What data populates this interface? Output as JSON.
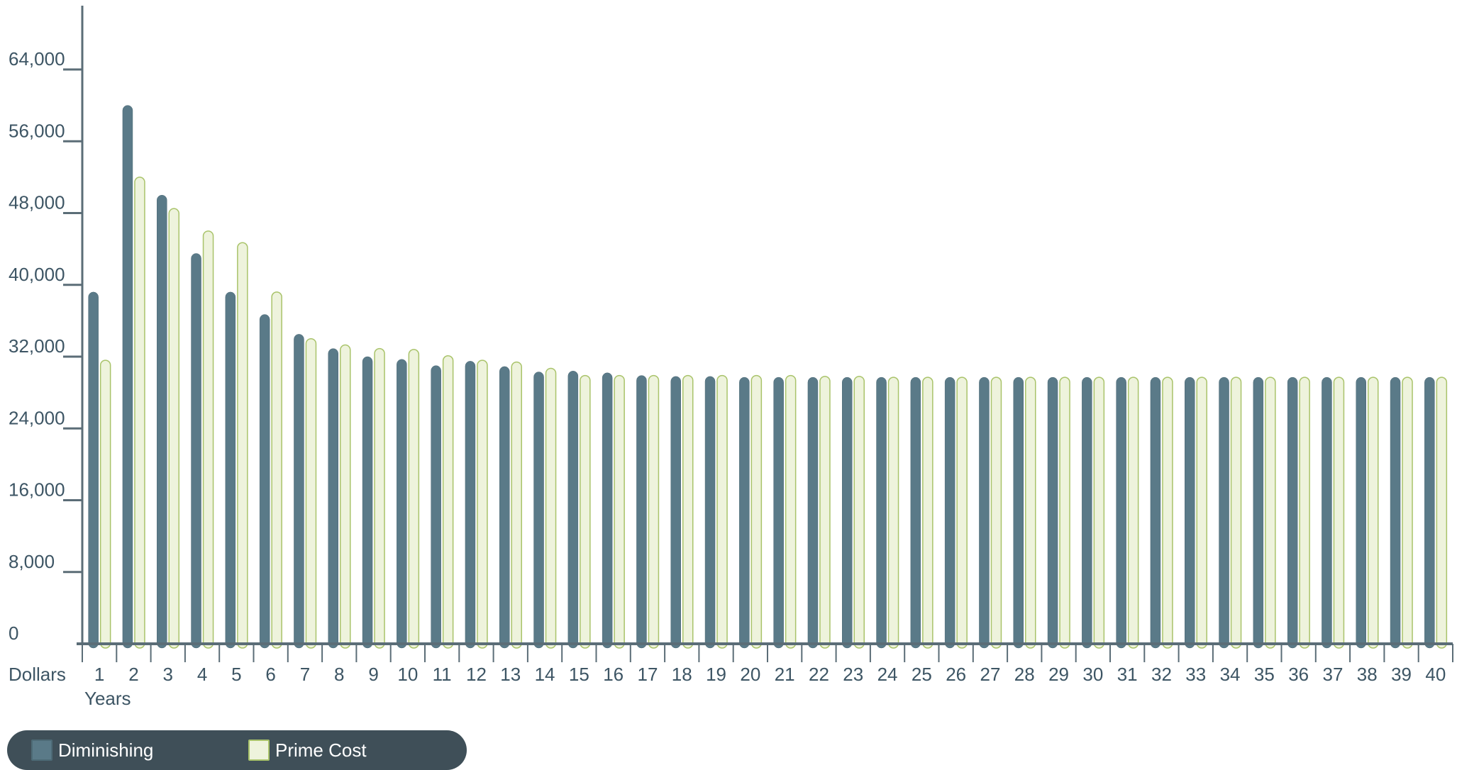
{
  "chart_data": {
    "type": "bar",
    "title": "",
    "ylabel": "Dollars",
    "xlabel": "Years",
    "ylim": [
      0,
      72000
    ],
    "yticks": [
      0,
      8000,
      16000,
      24000,
      32000,
      40000,
      48000,
      56000,
      64000
    ],
    "ytick_labels": [
      "0",
      "8,000",
      "16,000",
      "24,000",
      "32,000",
      "40,000",
      "48,000",
      "56,000",
      "64,000"
    ],
    "categories": [
      "1",
      "2",
      "3",
      "4",
      "5",
      "6",
      "7",
      "8",
      "9",
      "10",
      "11",
      "12",
      "13",
      "14",
      "15",
      "16",
      "17",
      "18",
      "19",
      "20",
      "21",
      "22",
      "23",
      "24",
      "25",
      "26",
      "27",
      "28",
      "29",
      "30",
      "31",
      "32",
      "33",
      "34",
      "35",
      "36",
      "37",
      "38",
      "39",
      "40"
    ],
    "series": [
      {
        "name": "Diminishing",
        "color": "#5a7a88",
        "values": [
          39200,
          60000,
          50000,
          43500,
          39200,
          36700,
          34500,
          32900,
          32000,
          31700,
          31000,
          31500,
          30900,
          30300,
          30400,
          30200,
          29900,
          29800,
          29800,
          29700,
          29700,
          29700,
          29700,
          29700,
          29700,
          29700,
          29700,
          29700,
          29700,
          29700,
          29700,
          29700,
          29700,
          29700,
          29700,
          29700,
          29700,
          29700,
          29700,
          29700
        ]
      },
      {
        "name": "Prime Cost",
        "color": "#eef3dc",
        "values": [
          31600,
          52000,
          48500,
          46000,
          44700,
          39200,
          34000,
          33300,
          32900,
          32800,
          32100,
          31600,
          31400,
          30700,
          29900,
          29900,
          29900,
          29900,
          29900,
          29900,
          29900,
          29800,
          29800,
          29700,
          29700,
          29700,
          29700,
          29700,
          29700,
          29700,
          29700,
          29700,
          29700,
          29700,
          29700,
          29700,
          29700,
          29700,
          29700,
          29700
        ]
      }
    ],
    "grid": false,
    "legend_position": "bottom-left"
  }
}
